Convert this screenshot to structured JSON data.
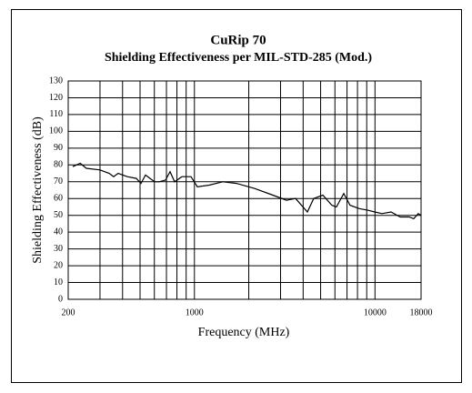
{
  "chart_data": {
    "type": "line",
    "title": "CuRip 70",
    "subtitle": "Shielding Effectiveness per MIL-STD-285 (Mod.)",
    "x_label": "Frequency (MHz)",
    "y_label": "Shielding Effectiveness (dB)",
    "xlog": true,
    "grid": true,
    "color": "#000000",
    "xlim": [
      200,
      18000
    ],
    "xticks": [
      200,
      1000,
      10000,
      18000
    ],
    "xgrid_minor": [
      300,
      400,
      500,
      600,
      700,
      800,
      900,
      2000,
      3000,
      4000,
      5000,
      6000,
      7000,
      8000,
      9000
    ],
    "ylim": [
      0,
      130
    ],
    "yticks": [
      0,
      10,
      20,
      30,
      40,
      50,
      60,
      70,
      80,
      90,
      100,
      110,
      120,
      130
    ],
    "series": [
      {
        "name": "CuRip 70",
        "color": "#000000",
        "x": [
          212,
          233,
          252,
          300,
          337,
          357,
          378,
          425,
          477,
          506,
          536,
          568,
          602,
          638,
          692,
          733,
          777,
          852,
          957,
          1038,
          1207,
          1436,
          1709,
          2156,
          2718,
          3233,
          3631,
          4222,
          4578,
          5142,
          5773,
          6117,
          6714,
          7280,
          8176,
          9180,
          9960,
          10930,
          12270,
          13780,
          15470,
          16390,
          17370,
          18000
        ],
        "values": [
          79,
          81,
          78,
          77,
          75,
          73,
          75,
          73,
          72,
          69,
          74,
          72,
          70,
          70,
          71,
          76,
          70,
          73,
          73,
          67,
          68,
          70,
          69,
          66,
          62,
          59,
          60,
          52,
          60,
          62,
          56,
          55,
          63,
          56,
          54,
          53,
          52,
          51,
          52,
          49,
          49,
          48,
          51,
          50
        ]
      }
    ]
  }
}
